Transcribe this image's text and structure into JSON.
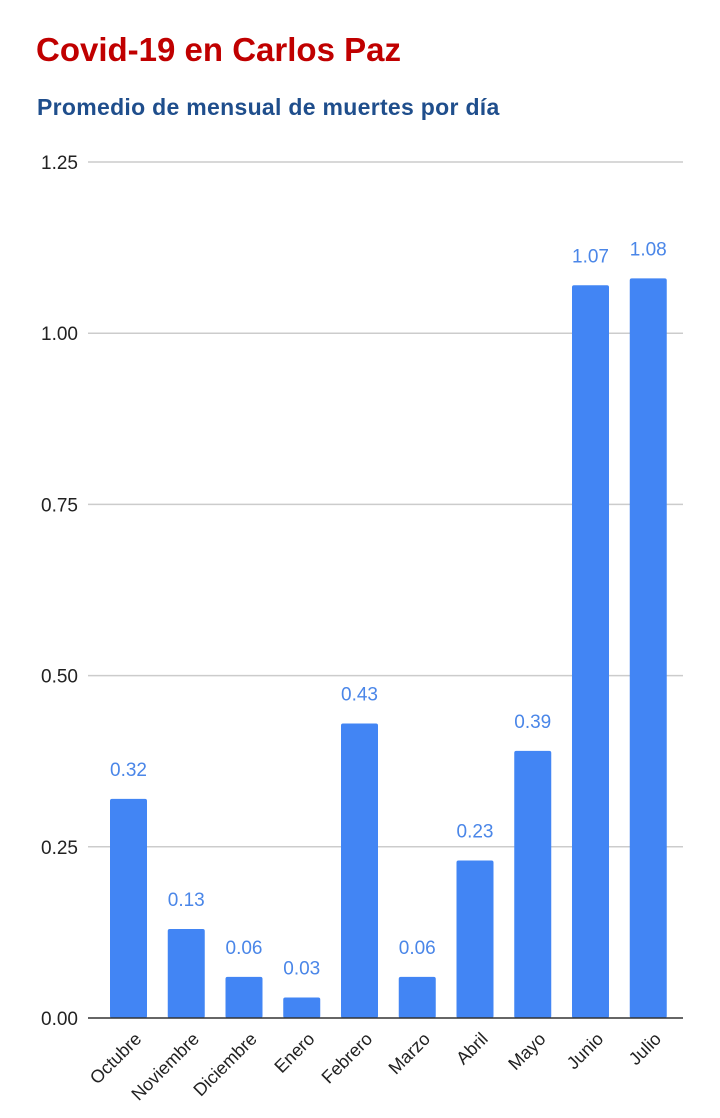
{
  "colors": {
    "title": "#c00000",
    "subtitle": "#1f4e8c",
    "bar": "#4285f4",
    "data_label": "#4a86e8",
    "grid": "#cccccc",
    "baseline": "#333333"
  },
  "chart_data": {
    "type": "bar",
    "title": "Covid-19 en Carlos Paz",
    "subtitle": "Promedio de mensual de muertes por día",
    "xlabel": "",
    "ylabel": "",
    "categories": [
      "Octubre",
      "Noviembre",
      "Diciembre",
      "Enero",
      "Febrero",
      "Marzo",
      "Abril",
      "Mayo",
      "Junio",
      "Julio"
    ],
    "values": [
      0.32,
      0.13,
      0.06,
      0.03,
      0.43,
      0.06,
      0.23,
      0.39,
      1.07,
      1.08
    ],
    "data_labels": [
      "0.32",
      "0.13",
      "0.06",
      "0.03",
      "0.43",
      "0.06",
      "0.23",
      "0.39",
      "1.07",
      "1.08"
    ],
    "ylim": [
      0,
      1.25
    ],
    "yticks": [
      0,
      0.25,
      0.5,
      0.75,
      1.0,
      1.25
    ],
    "ytick_labels": [
      "0.00",
      "0.25",
      "0.50",
      "0.75",
      "1.00",
      "1.25"
    ],
    "grid": true,
    "legend": "none"
  }
}
